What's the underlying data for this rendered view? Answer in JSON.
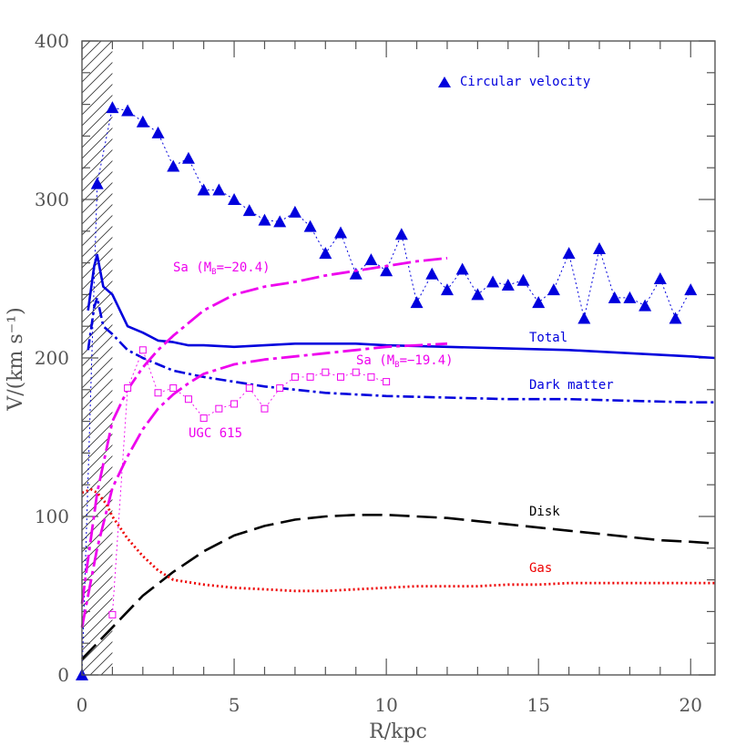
{
  "chart_data": {
    "type": "line",
    "xlabel": "R/kpc",
    "ylabel": "V/(km s⁻¹)",
    "xlim": [
      0,
      20.8
    ],
    "ylim": [
      0,
      400
    ],
    "x_ticks": [
      "0",
      "5",
      "10",
      "15",
      "20"
    ],
    "y_ticks": [
      "0",
      "100",
      "200",
      "300",
      "400"
    ],
    "legend_label": "Circular velocity",
    "colors": {
      "blue": "#0000dd",
      "magenta": "#ee00ee",
      "black": "#000000",
      "red": "#ee0000",
      "axis": "#555555"
    },
    "series": [
      {
        "name": "Circular velocity",
        "style": "triangles-dotted",
        "x": [
          0,
          0.5,
          1,
          1.5,
          2,
          2.5,
          3,
          3.5,
          4,
          4.5,
          5,
          5.5,
          6,
          6.5,
          7,
          7.5,
          8,
          8.5,
          9,
          9.5,
          10,
          10.5,
          11,
          11.5,
          12,
          12.5,
          13,
          13.5,
          14,
          14.5,
          15,
          15.5,
          16,
          16.5,
          17,
          17.5,
          18,
          18.5,
          19,
          19.5,
          20
        ],
        "y": [
          0,
          310,
          358,
          356,
          349,
          342,
          321,
          326,
          306,
          306,
          300,
          293,
          287,
          286,
          292,
          283,
          266,
          279,
          253,
          262,
          255,
          278,
          235,
          253,
          243,
          256,
          240,
          248,
          246,
          249,
          235,
          243,
          266,
          225,
          269,
          238,
          238,
          233,
          250,
          225,
          243
        ]
      },
      {
        "name": "Total",
        "style": "solid",
        "x": [
          0.2,
          0.4,
          0.5,
          0.7,
          1,
          1.5,
          2,
          2.5,
          3,
          3.5,
          4,
          5,
          6,
          7,
          8,
          9,
          10,
          12,
          14,
          16,
          18,
          20,
          20.8
        ],
        "y": [
          230,
          258,
          265,
          245,
          240,
          220,
          216,
          211,
          210,
          208,
          208,
          207,
          208,
          209,
          209,
          209,
          208,
          207,
          206,
          205,
          203,
          201,
          200
        ]
      },
      {
        "name": "Dark matter",
        "style": "dash-dot",
        "x": [
          0.2,
          0.4,
          0.5,
          0.7,
          1,
          1.5,
          2,
          2.5,
          3,
          4,
          5,
          6,
          7,
          8,
          10,
          12,
          14,
          16,
          18,
          20,
          20.8
        ],
        "y": [
          205,
          232,
          238,
          220,
          215,
          205,
          200,
          196,
          192,
          188,
          185,
          182,
          180,
          178,
          176,
          175,
          174,
          174,
          173,
          172,
          172
        ]
      },
      {
        "name": "Sa (M_B=-20.4)",
        "style": "long-dash-dot",
        "x": [
          0,
          0.5,
          1,
          1.5,
          2,
          2.5,
          3,
          3.5,
          4,
          5,
          6,
          7,
          8,
          9,
          10,
          11,
          12
        ],
        "y": [
          45,
          115,
          160,
          180,
          194,
          205,
          214,
          222,
          230,
          240,
          245,
          248,
          252,
          255,
          258,
          261,
          263
        ]
      },
      {
        "name": "Sa (M_B=-19.4)",
        "style": "long-dash-dot",
        "x": [
          0,
          0.5,
          1,
          1.5,
          2,
          2.5,
          3,
          3.5,
          4,
          5,
          6,
          7,
          8,
          9,
          10,
          11,
          12
        ],
        "y": [
          30,
          80,
          118,
          138,
          155,
          168,
          177,
          184,
          190,
          196,
          199,
          201,
          203,
          205,
          207,
          208,
          209
        ]
      },
      {
        "name": "UGC 615",
        "style": "squares-dotted",
        "x": [
          1,
          1.5,
          2,
          2.5,
          3,
          3.5,
          4,
          4.5,
          5,
          5.5,
          6,
          6.5,
          7,
          7.5,
          8,
          8.5,
          9,
          9.5,
          10
        ],
        "y": [
          38,
          181,
          205,
          178,
          181,
          174,
          162,
          168,
          171,
          181,
          168,
          181,
          188,
          188,
          191,
          188,
          191,
          188,
          185
        ]
      },
      {
        "name": "Disk",
        "style": "long-dash",
        "x": [
          0,
          1,
          2,
          3,
          4,
          5,
          6,
          7,
          8,
          9,
          10,
          11,
          12,
          13,
          14,
          15,
          16,
          17,
          18,
          19,
          20,
          20.8
        ],
        "y": [
          10,
          30,
          50,
          65,
          78,
          88,
          94,
          98,
          100,
          101,
          101,
          100,
          99,
          97,
          95,
          93,
          91,
          89,
          87,
          85,
          84,
          83
        ]
      },
      {
        "name": "Gas",
        "style": "dotted",
        "x": [
          0,
          0.3,
          0.5,
          0.8,
          1,
          1.5,
          2,
          2.5,
          3,
          4,
          5,
          6,
          7,
          8,
          9,
          10,
          11,
          12,
          13,
          14,
          15,
          16,
          17,
          18,
          19,
          20,
          20.8
        ],
        "y": [
          115,
          117,
          115,
          108,
          100,
          86,
          75,
          66,
          60,
          57,
          55,
          54,
          53,
          53,
          54,
          55,
          56,
          56,
          56,
          57,
          57,
          58,
          58,
          58,
          58,
          58,
          58
        ]
      }
    ],
    "annotations": {
      "total": "Total",
      "dark_matter": "Dark matter",
      "sa1_prefix": "Sa (M",
      "sa1_sub": "B",
      "sa1_suffix": "=−20.4)",
      "sa2_prefix": "Sa (M",
      "sa2_sub": "B",
      "sa2_suffix": "=−19.4)",
      "ugc": "UGC 615",
      "disk": "Disk",
      "gas": "Gas"
    }
  }
}
